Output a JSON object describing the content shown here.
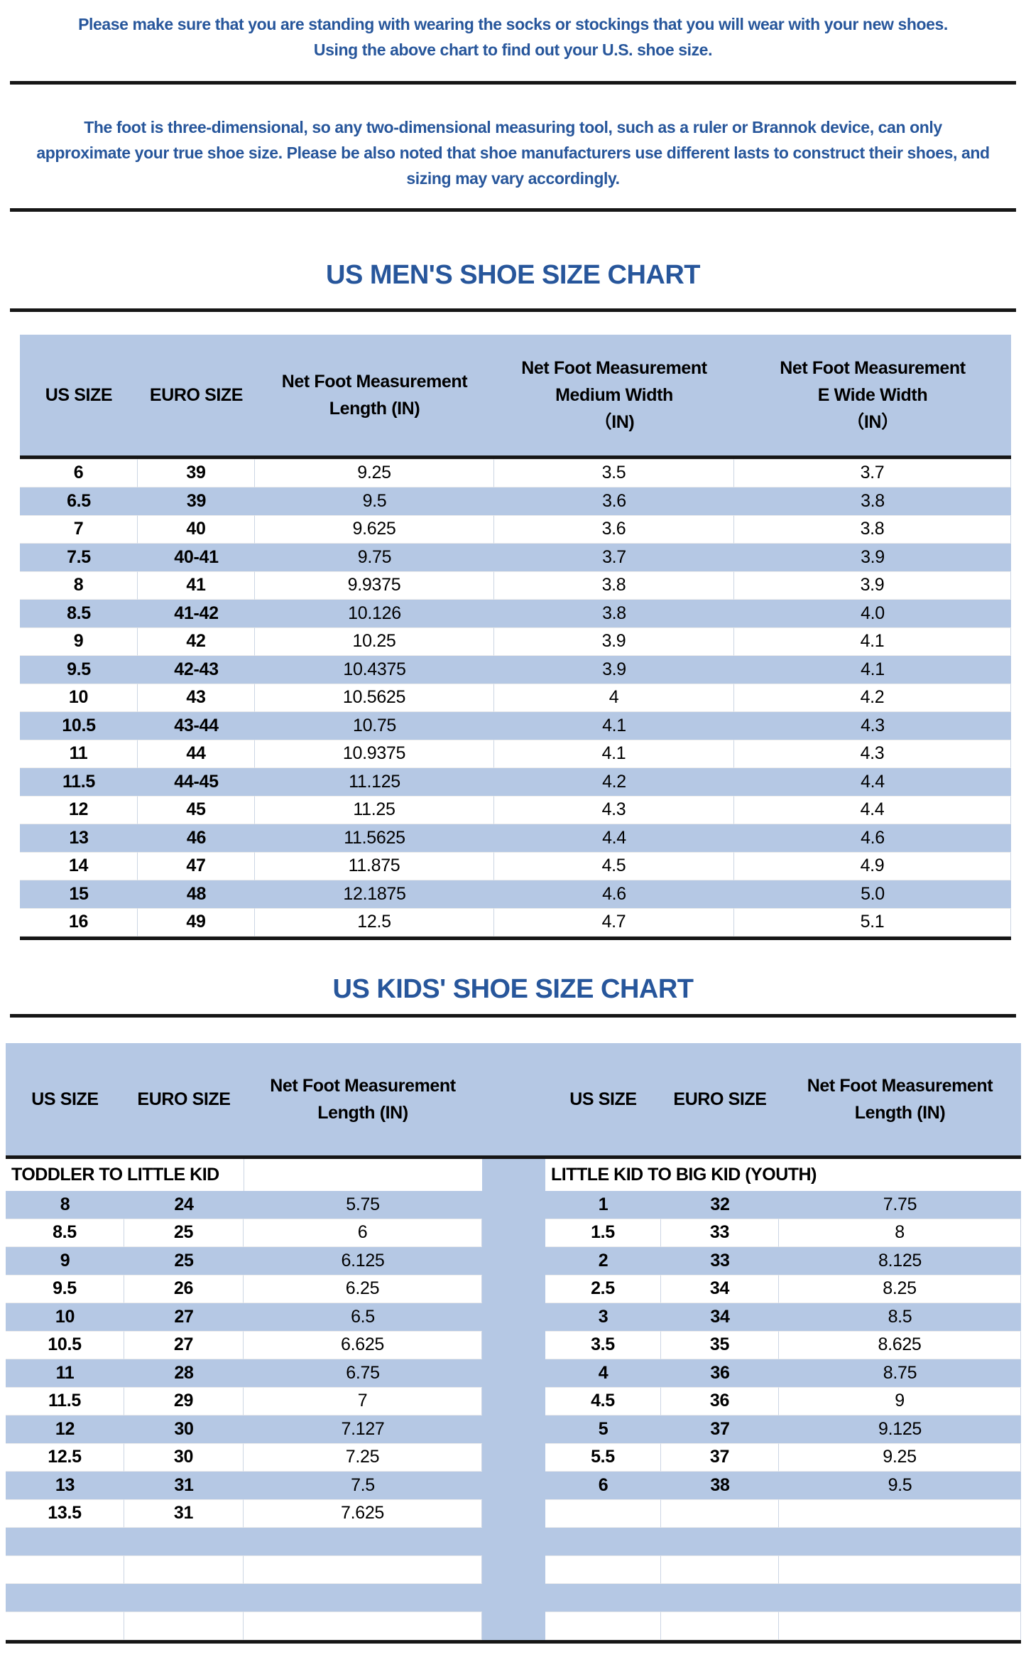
{
  "colors": {
    "navy_text": "#27569B",
    "row_blue": "#B5C8E4",
    "line_black": "#161616"
  },
  "intro_note": {
    "line1": "Please make sure that you are standing with wearing the socks or stockings that you will wear with your new shoes.",
    "line2": "Using the above chart to find out your U.S. shoe size."
  },
  "dimension_note": "The foot is three-dimensional, so any two-dimensional measuring tool, such as a ruler or Brannok device, can only approximate your true shoe size. Please be also noted that shoe manufacturers use different lasts to construct their shoes, and sizing may vary accordingly.",
  "mens_chart": {
    "title": "US MEN'S SHOE SIZE CHART",
    "columns": [
      "US SIZE",
      "EURO SIZE",
      "Net Foot Measurement\nLength (IN)",
      "Net Foot Measurement\nMedium Width\n（IN)",
      "Net Foot Measurement\nE Wide Width\n（IN）"
    ],
    "rows": [
      [
        "6",
        "39",
        "9.25",
        "3.5",
        "3.7"
      ],
      [
        "6.5",
        "39",
        "9.5",
        "3.6",
        "3.8"
      ],
      [
        "7",
        "40",
        "9.625",
        "3.6",
        "3.8"
      ],
      [
        "7.5",
        "40-41",
        "9.75",
        "3.7",
        "3.9"
      ],
      [
        "8",
        "41",
        "9.9375",
        "3.8",
        "3.9"
      ],
      [
        "8.5",
        "41-42",
        "10.126",
        "3.8",
        "4.0"
      ],
      [
        "9",
        "42",
        "10.25",
        "3.9",
        "4.1"
      ],
      [
        "9.5",
        "42-43",
        "10.4375",
        "3.9",
        "4.1"
      ],
      [
        "10",
        "43",
        "10.5625",
        "4",
        "4.2"
      ],
      [
        "10.5",
        "43-44",
        "10.75",
        "4.1",
        "4.3"
      ],
      [
        "11",
        "44",
        "10.9375",
        "4.1",
        "4.3"
      ],
      [
        "11.5",
        "44-45",
        "11.125",
        "4.2",
        "4.4"
      ],
      [
        "12",
        "45",
        "11.25",
        "4.3",
        "4.4"
      ],
      [
        "13",
        "46",
        "11.5625",
        "4.4",
        "4.6"
      ],
      [
        "14",
        "47",
        "11.875",
        "4.5",
        "4.9"
      ],
      [
        "15",
        "48",
        "12.1875",
        "4.6",
        "5.0"
      ],
      [
        "16",
        "49",
        "12.5",
        "4.7",
        "5.1"
      ]
    ]
  },
  "kids_chart": {
    "title": "US KIDS' SHOE SIZE CHART",
    "columns": [
      "US SIZE",
      "EURO SIZE",
      "Net Foot Measurement\nLength (IN)",
      "US SIZE",
      "EURO SIZE",
      "Net Foot Measurement\nLength (IN)"
    ],
    "left_section_label": "TODDLER TO LITTLE KID",
    "right_section_label": "LITTLE KID TO BIG KID (YOUTH)",
    "total_rows": 16,
    "left_rows": [
      [
        "8",
        "24",
        "5.75"
      ],
      [
        "8.5",
        "25",
        "6"
      ],
      [
        "9",
        "25",
        "6.125"
      ],
      [
        "9.5",
        "26",
        "6.25"
      ],
      [
        "10",
        "27",
        "6.5"
      ],
      [
        "10.5",
        "27",
        "6.625"
      ],
      [
        "11",
        "28",
        "6.75"
      ],
      [
        "11.5",
        "29",
        "7"
      ],
      [
        "12",
        "30",
        "7.127"
      ],
      [
        "12.5",
        "30",
        "7.25"
      ],
      [
        "13",
        "31",
        "7.5"
      ],
      [
        "13.5",
        "31",
        "7.625"
      ]
    ],
    "right_rows": [
      [
        "1",
        "32",
        "7.75"
      ],
      [
        "1.5",
        "33",
        "8"
      ],
      [
        "2",
        "33",
        "8.125"
      ],
      [
        "2.5",
        "34",
        "8.25"
      ],
      [
        "3",
        "34",
        "8.5"
      ],
      [
        "3.5",
        "35",
        "8.625"
      ],
      [
        "4",
        "36",
        "8.75"
      ],
      [
        "4.5",
        "36",
        "9"
      ],
      [
        "5",
        "37",
        "9.125"
      ],
      [
        "5.5",
        "37",
        "9.25"
      ],
      [
        "6",
        "38",
        "9.5"
      ]
    ]
  }
}
